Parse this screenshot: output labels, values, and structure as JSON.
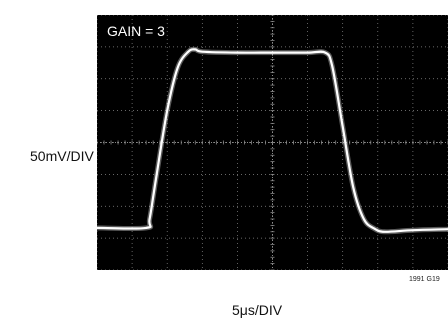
{
  "chart_data": {
    "type": "line",
    "annotation": "GAIN = 3",
    "ylabel": "50mV/DIV",
    "xlabel": "5μs/DIV",
    "figure_id": "1991 G19",
    "grid": true,
    "background": "#000000",
    "trace_color": "#ffffff",
    "grid_color": "#8a8a8a",
    "xlim": [
      0,
      10
    ],
    "ylim": [
      0,
      8
    ],
    "x_unit": "div",
    "y_unit": "div",
    "series": [
      {
        "x": [
          0,
          1.4,
          1.5,
          1.7,
          2.0,
          2.3,
          2.6,
          2.8,
          3.0,
          4.0,
          5.0,
          6.0,
          6.5,
          6.7,
          7.0,
          7.3,
          7.6,
          7.9,
          8.2,
          9.0,
          10
        ],
        "y": [
          1.32,
          1.32,
          1.6,
          3.0,
          5.0,
          6.35,
          6.85,
          6.92,
          6.85,
          6.82,
          6.82,
          6.82,
          6.82,
          6.4,
          4.5,
          2.6,
          1.6,
          1.3,
          1.2,
          1.25,
          1.28
        ]
      }
    ]
  }
}
